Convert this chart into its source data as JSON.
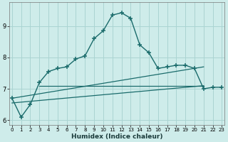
{
  "xlabel": "Humidex (Indice chaleur)",
  "background_color": "#ceecea",
  "grid_color": "#aad4d2",
  "line_color": "#1a6b6b",
  "x": [
    0,
    1,
    2,
    3,
    4,
    5,
    6,
    7,
    8,
    9,
    10,
    11,
    12,
    13,
    14,
    15,
    16,
    17,
    18,
    19,
    20,
    21,
    22,
    23
  ],
  "y_main": [
    6.7,
    6.1,
    6.5,
    7.2,
    7.55,
    7.65,
    7.7,
    7.95,
    8.05,
    8.6,
    8.85,
    9.35,
    9.42,
    9.25,
    8.4,
    8.15,
    7.65,
    7.7,
    7.75,
    7.75,
    7.65,
    7.0,
    7.05,
    7.05
  ],
  "line1_x": [
    0,
    21
  ],
  "line1_y": [
    6.55,
    7.1
  ],
  "line2_x": [
    3,
    21
  ],
  "line2_y": [
    7.1,
    7.1
  ],
  "line3_x": [
    0,
    21
  ],
  "line3_y": [
    6.7,
    7.7
  ],
  "ylim": [
    5.85,
    9.75
  ],
  "yticks": [
    6,
    7,
    8,
    9
  ],
  "xticks": [
    0,
    1,
    2,
    3,
    4,
    5,
    6,
    7,
    8,
    9,
    10,
    11,
    12,
    13,
    14,
    15,
    16,
    17,
    18,
    19,
    20,
    21,
    22,
    23
  ],
  "xlim": [
    -0.3,
    23.3
  ]
}
